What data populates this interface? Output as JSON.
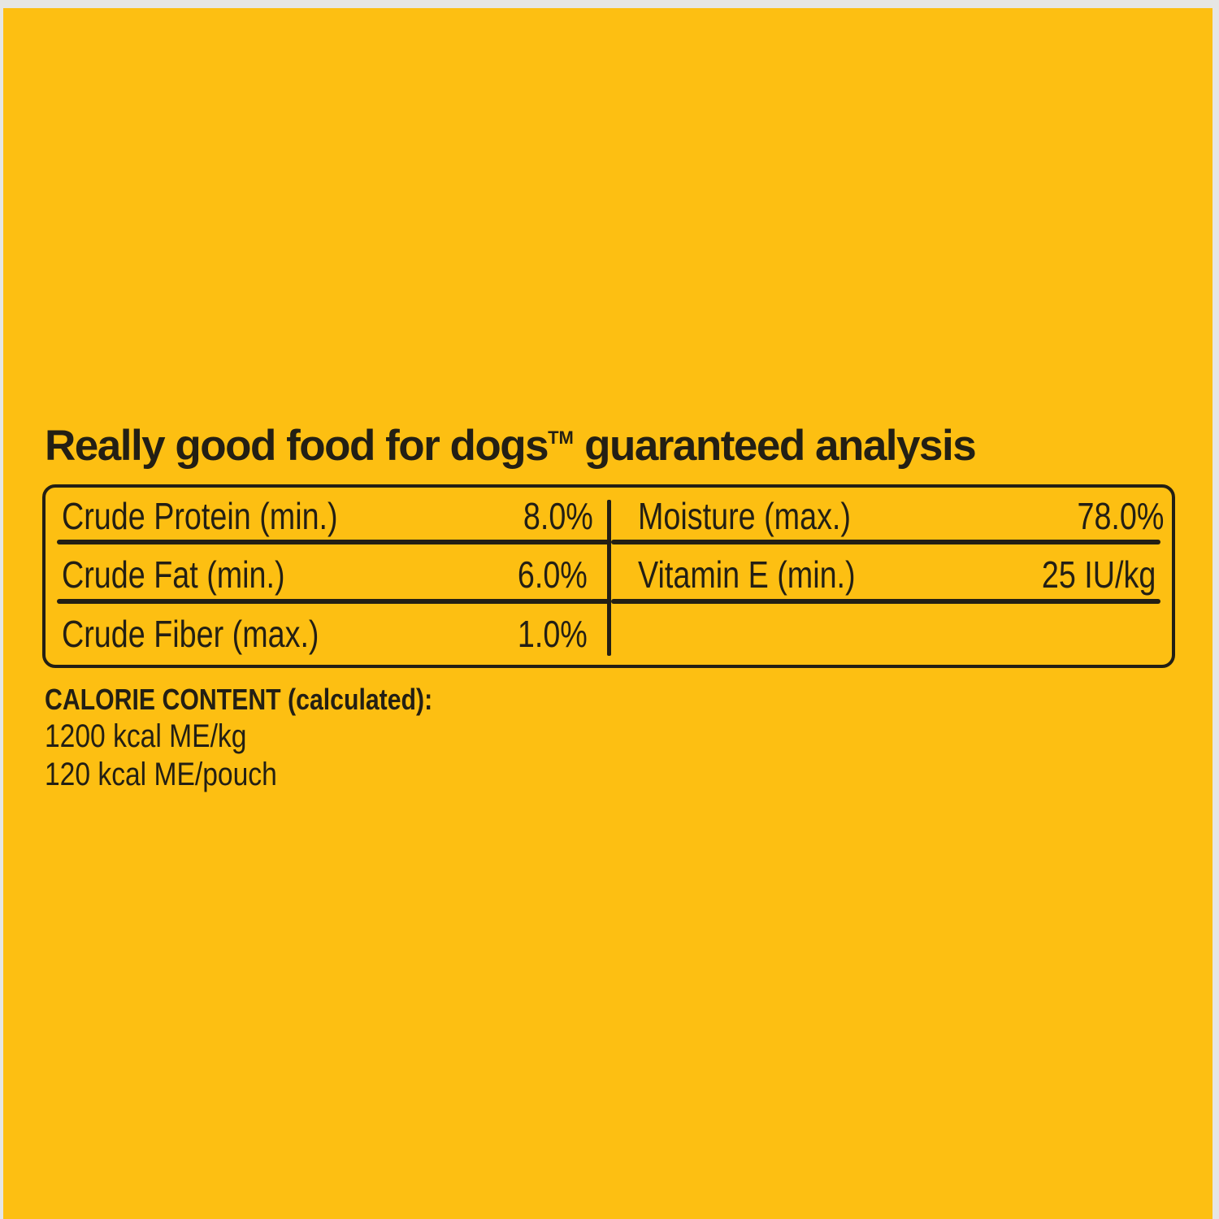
{
  "title": "Really good food for dogs",
  "title_trademark": "TM",
  "title_suffix": "guaranteed analysis",
  "analysis": {
    "left": [
      {
        "label": "Crude Protein (min.)",
        "value": "8.0%"
      },
      {
        "label": "Crude Fat (min.)",
        "value": "6.0%"
      },
      {
        "label": "Crude Fiber (max.)",
        "value": "1.0%"
      }
    ],
    "right": [
      {
        "label": "Moisture (max.)",
        "value": "78.0%"
      },
      {
        "label": "Vitamin E (min.)",
        "value": "25 IU/kg"
      }
    ]
  },
  "calorie": {
    "heading": "CALORIE CONTENT",
    "heading_suffix": "(calculated):",
    "lines": [
      "1200 kcal ME/kg",
      "120 kcal ME/pouch"
    ]
  },
  "colors": {
    "background": "#fdbf12",
    "text": "#231f14"
  }
}
